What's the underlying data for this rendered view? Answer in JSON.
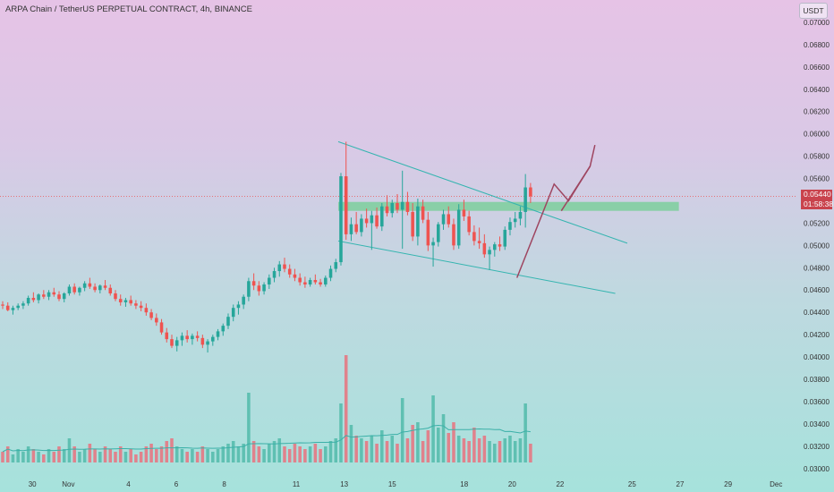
{
  "header": {
    "symbol_title": "ARPA Chain / TetherUS PERPETUAL CONTRACT, 4h, BINANCE",
    "currency": "USDT"
  },
  "last_price": {
    "value": "0.05440",
    "countdown": "01:58:38",
    "color": "#c9434d"
  },
  "colors": {
    "up": "#26a69a",
    "down": "#ef5350",
    "up_volume": "#5fc0b2",
    "down_volume": "#e0828c",
    "trendline": "#35b5b0",
    "projection_arrow": "#9e4560",
    "zone_fill": "#7ccf9c",
    "volume_ma": "#3bb0a8"
  },
  "chart_data": {
    "type": "candlestick",
    "symbol": "ARPAUSDT",
    "timeframe": "4h",
    "exchange": "BINANCE",
    "yaxis": {
      "ticks": [
        "0.07000",
        "0.06800",
        "0.06600",
        "0.06400",
        "0.06200",
        "0.06000",
        "0.05800",
        "0.05600",
        "0.05200",
        "0.05000",
        "0.04800",
        "0.04600",
        "0.04400",
        "0.04200",
        "0.04000",
        "0.03800",
        "0.03600",
        "0.03400",
        "0.03200",
        "0.03000"
      ],
      "range": [
        0.0295,
        0.0712
      ]
    },
    "xaxis": {
      "ticks": [
        {
          "label": "30",
          "t": 2.7
        },
        {
          "label": "Nov",
          "t": 5.7
        },
        {
          "label": "4",
          "t": 10.7
        },
        {
          "label": "6",
          "t": 14.7
        },
        {
          "label": "8",
          "t": 18.7
        },
        {
          "label": "11",
          "t": 24.7
        },
        {
          "label": "13",
          "t": 28.7
        },
        {
          "label": "15",
          "t": 32.7
        },
        {
          "label": "18",
          "t": 38.7
        },
        {
          "label": "20",
          "t": 42.7
        },
        {
          "label": "22",
          "t": 46.7
        },
        {
          "label": "25",
          "t": 52.7
        },
        {
          "label": "27",
          "t": 56.7
        },
        {
          "label": "29",
          "t": 60.7
        },
        {
          "label": "Dec",
          "t": 64.7
        }
      ],
      "range": [
        0,
        66.4
      ],
      "unit": "days since 28 Oct (approx)"
    },
    "candles": [
      [
        0.0447,
        0.045,
        0.0443,
        0.0446,
        4
      ],
      [
        0.0446,
        0.0449,
        0.0441,
        0.0442,
        6
      ],
      [
        0.0442,
        0.0446,
        0.0438,
        0.0444,
        3
      ],
      [
        0.0444,
        0.0448,
        0.0442,
        0.0446,
        5
      ],
      [
        0.0446,
        0.045,
        0.0443,
        0.0448,
        4
      ],
      [
        0.0448,
        0.0455,
        0.0446,
        0.0453,
        6
      ],
      [
        0.0453,
        0.0458,
        0.0449,
        0.0451,
        5
      ],
      [
        0.0451,
        0.0457,
        0.0448,
        0.0456,
        4
      ],
      [
        0.0456,
        0.046,
        0.0452,
        0.0454,
        3
      ],
      [
        0.0454,
        0.046,
        0.0451,
        0.0458,
        5
      ],
      [
        0.0458,
        0.0462,
        0.0454,
        0.0456,
        4
      ],
      [
        0.0456,
        0.0459,
        0.045,
        0.0452,
        6
      ],
      [
        0.0452,
        0.0458,
        0.0449,
        0.0457,
        5
      ],
      [
        0.0457,
        0.0465,
        0.0455,
        0.0463,
        9
      ],
      [
        0.0463,
        0.0466,
        0.0456,
        0.0458,
        6
      ],
      [
        0.0458,
        0.0463,
        0.0455,
        0.0462,
        4
      ],
      [
        0.0462,
        0.0468,
        0.0459,
        0.0466,
        5
      ],
      [
        0.0466,
        0.0471,
        0.0461,
        0.0463,
        7
      ],
      [
        0.0463,
        0.0466,
        0.0458,
        0.046,
        5
      ],
      [
        0.046,
        0.0465,
        0.0457,
        0.0464,
        4
      ],
      [
        0.0464,
        0.0469,
        0.046,
        0.0462,
        6
      ],
      [
        0.0462,
        0.0465,
        0.0455,
        0.0457,
        5
      ],
      [
        0.0457,
        0.046,
        0.045,
        0.0452,
        4
      ],
      [
        0.0452,
        0.0456,
        0.0446,
        0.0449,
        6
      ],
      [
        0.0449,
        0.0453,
        0.0445,
        0.0451,
        4
      ],
      [
        0.0451,
        0.0455,
        0.0446,
        0.0448,
        5
      ],
      [
        0.0448,
        0.0451,
        0.0443,
        0.0446,
        3
      ],
      [
        0.0446,
        0.045,
        0.0441,
        0.0444,
        4
      ],
      [
        0.0444,
        0.0448,
        0.0437,
        0.044,
        6
      ],
      [
        0.044,
        0.0443,
        0.0433,
        0.0435,
        7
      ],
      [
        0.0435,
        0.0439,
        0.0428,
        0.0431,
        5
      ],
      [
        0.0431,
        0.0434,
        0.042,
        0.0422,
        6
      ],
      [
        0.0422,
        0.0426,
        0.0413,
        0.0416,
        8
      ],
      [
        0.0416,
        0.042,
        0.0408,
        0.041,
        9
      ],
      [
        0.041,
        0.0418,
        0.0405,
        0.0415,
        6
      ],
      [
        0.0415,
        0.0422,
        0.041,
        0.0419,
        5
      ],
      [
        0.0419,
        0.0424,
        0.0413,
        0.0416,
        4
      ],
      [
        0.0416,
        0.0421,
        0.0411,
        0.0419,
        5
      ],
      [
        0.0419,
        0.0423,
        0.0414,
        0.0417,
        4
      ],
      [
        0.0417,
        0.042,
        0.0408,
        0.0411,
        6
      ],
      [
        0.0411,
        0.0416,
        0.0404,
        0.0414,
        5
      ],
      [
        0.0414,
        0.042,
        0.041,
        0.0418,
        4
      ],
      [
        0.0418,
        0.0425,
        0.0415,
        0.0423,
        5
      ],
      [
        0.0423,
        0.043,
        0.0419,
        0.0428,
        6
      ],
      [
        0.0428,
        0.0439,
        0.0425,
        0.0436,
        7
      ],
      [
        0.0436,
        0.0447,
        0.0432,
        0.0444,
        8
      ],
      [
        0.0444,
        0.045,
        0.0438,
        0.0447,
        6
      ],
      [
        0.0447,
        0.0456,
        0.0443,
        0.0454,
        7
      ],
      [
        0.0454,
        0.0471,
        0.045,
        0.0468,
        26
      ],
      [
        0.0468,
        0.0475,
        0.046,
        0.0464,
        8
      ],
      [
        0.0464,
        0.0468,
        0.0455,
        0.0459,
        6
      ],
      [
        0.0459,
        0.0467,
        0.0456,
        0.0465,
        5
      ],
      [
        0.0465,
        0.0474,
        0.0461,
        0.0471,
        7
      ],
      [
        0.0471,
        0.048,
        0.0467,
        0.0477,
        8
      ],
      [
        0.0477,
        0.0486,
        0.0472,
        0.0483,
        9
      ],
      [
        0.0483,
        0.0489,
        0.0476,
        0.0479,
        6
      ],
      [
        0.0479,
        0.0483,
        0.0471,
        0.0474,
        5
      ],
      [
        0.0474,
        0.0479,
        0.0468,
        0.0471,
        7
      ],
      [
        0.0471,
        0.0475,
        0.0464,
        0.0467,
        6
      ],
      [
        0.0467,
        0.0472,
        0.0462,
        0.0465,
        5
      ],
      [
        0.0465,
        0.0471,
        0.0463,
        0.0469,
        6
      ],
      [
        0.0469,
        0.0474,
        0.0465,
        0.0467,
        7
      ],
      [
        0.0467,
        0.047,
        0.0463,
        0.0465,
        5
      ],
      [
        0.0465,
        0.0473,
        0.0463,
        0.0471,
        6
      ],
      [
        0.0471,
        0.0482,
        0.0468,
        0.0479,
        8
      ],
      [
        0.0479,
        0.0488,
        0.0476,
        0.0485,
        9
      ],
      [
        0.0485,
        0.0565,
        0.0482,
        0.0562,
        22
      ],
      [
        0.0562,
        0.0593,
        0.0505,
        0.051,
        40
      ],
      [
        0.051,
        0.0525,
        0.0504,
        0.0519,
        14
      ],
      [
        0.0519,
        0.053,
        0.051,
        0.0512,
        10
      ],
      [
        0.0512,
        0.0528,
        0.0508,
        0.0524,
        9
      ],
      [
        0.0524,
        0.0533,
        0.0516,
        0.052,
        8
      ],
      [
        0.052,
        0.0531,
        0.0496,
        0.0527,
        10
      ],
      [
        0.0527,
        0.0534,
        0.0515,
        0.0517,
        7
      ],
      [
        0.0517,
        0.0538,
        0.0513,
        0.0535,
        12
      ],
      [
        0.0535,
        0.0545,
        0.0526,
        0.0529,
        8
      ],
      [
        0.0529,
        0.0541,
        0.0525,
        0.0538,
        10
      ],
      [
        0.0538,
        0.0546,
        0.0529,
        0.0532,
        7
      ],
      [
        0.0532,
        0.0567,
        0.0497,
        0.0539,
        24
      ],
      [
        0.0539,
        0.0548,
        0.0527,
        0.053,
        9
      ],
      [
        0.053,
        0.0538,
        0.0504,
        0.0508,
        14
      ],
      [
        0.0508,
        0.0542,
        0.05,
        0.0535,
        15
      ],
      [
        0.0535,
        0.0541,
        0.052,
        0.0523,
        8
      ],
      [
        0.0523,
        0.053,
        0.0495,
        0.05,
        12
      ],
      [
        0.05,
        0.0507,
        0.0481,
        0.0503,
        25
      ],
      [
        0.0503,
        0.0521,
        0.0499,
        0.0519,
        13
      ],
      [
        0.0519,
        0.0532,
        0.0514,
        0.0528,
        18
      ],
      [
        0.0528,
        0.0535,
        0.0516,
        0.0519,
        11
      ],
      [
        0.0519,
        0.0524,
        0.0496,
        0.05,
        15
      ],
      [
        0.05,
        0.0537,
        0.0497,
        0.0532,
        10
      ],
      [
        0.0532,
        0.0541,
        0.0522,
        0.0526,
        9
      ],
      [
        0.0526,
        0.0531,
        0.0509,
        0.0512,
        8
      ],
      [
        0.0512,
        0.0518,
        0.05,
        0.0504,
        13
      ],
      [
        0.0504,
        0.0516,
        0.0497,
        0.0502,
        9
      ],
      [
        0.0502,
        0.051,
        0.0489,
        0.0492,
        10
      ],
      [
        0.0492,
        0.0499,
        0.0478,
        0.0496,
        8
      ],
      [
        0.0496,
        0.0503,
        0.049,
        0.0501,
        7
      ],
      [
        0.0501,
        0.0508,
        0.0495,
        0.0499,
        8
      ],
      [
        0.0499,
        0.0517,
        0.0496,
        0.0514,
        9
      ],
      [
        0.0514,
        0.0525,
        0.0509,
        0.0521,
        10
      ],
      [
        0.0521,
        0.053,
        0.0516,
        0.0524,
        8
      ],
      [
        0.0524,
        0.0535,
        0.0518,
        0.053,
        9
      ],
      [
        0.053,
        0.0564,
        0.0516,
        0.0552,
        22
      ],
      [
        0.0552,
        0.0556,
        0.0538,
        0.0544,
        7
      ]
    ],
    "drawings": {
      "upper_trendline": [
        [
          28.2,
          0.0593
        ],
        [
          52.3,
          0.0502
        ]
      ],
      "lower_trendline": [
        [
          28.2,
          0.0504
        ],
        [
          51.3,
          0.0457
        ]
      ],
      "supply_zone": {
        "t0": 28.2,
        "t1": 56.6,
        "p_low": 0.0531,
        "p_high": 0.0539
      },
      "projection_path": [
        [
          43.1,
          0.0471
        ],
        [
          46.2,
          0.0555
        ],
        [
          47.4,
          0.054
        ],
        [
          49.2,
          0.0571
        ],
        [
          46.8,
          0.0531
        ],
        [
          49.6,
          0.059
        ]
      ],
      "projection_path_order": "start, peak, dip, arrow tip"
    },
    "volume": {
      "ylim": [
        0,
        40
      ],
      "moving_average_period": 20
    },
    "last_price": 0.0544
  }
}
